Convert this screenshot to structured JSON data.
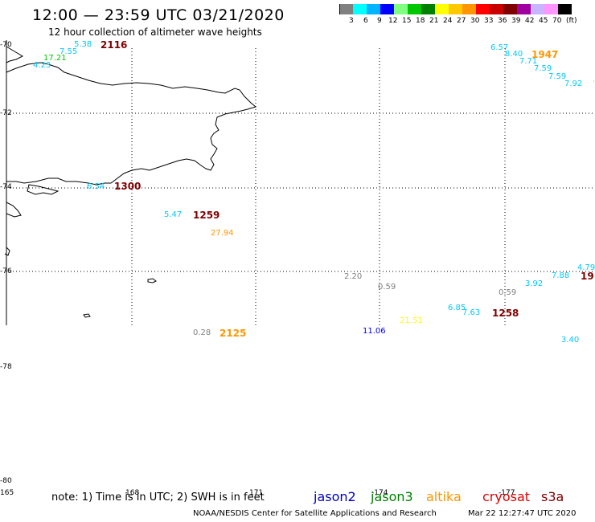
{
  "header": {
    "title": "12:00 — 23:59 UTC 03/21/2020",
    "subtitle": "12 hour collection of altimeter wave heights"
  },
  "legend": {
    "colors": [
      "#808080",
      "#00ffff",
      "#00b4ff",
      "#0000ff",
      "#80ff80",
      "#00c800",
      "#008000",
      "#ffff00",
      "#ffc800",
      "#ff9600",
      "#ff0000",
      "#c80000",
      "#800000",
      "#a000a0",
      "#c8b4ff",
      "#ff96ff",
      "#000000"
    ],
    "labels": [
      "3",
      "6",
      "9",
      "12",
      "15",
      "18",
      "21",
      "24",
      "27",
      "30",
      "33",
      "36",
      "39",
      "42",
      "45",
      "70",
      "(ft)"
    ]
  },
  "axes": {
    "lat_labels": [
      "-70",
      "-72",
      "-74",
      "-76",
      "-78",
      "-80"
    ],
    "lon_labels": [
      "165",
      "168",
      "171",
      "-174",
      "-177"
    ]
  },
  "observations": [
    {
      "text": "5.38",
      "color": "#00c8ff"
    },
    {
      "text": "7.55",
      "color": "#00c8ff"
    },
    {
      "text": "17.21",
      "color": "#00c800"
    },
    {
      "text": "4.23",
      "color": "#00c8ff"
    },
    {
      "text": "6.57",
      "color": "#00c8ff"
    },
    {
      "text": "8.40",
      "color": "#00c8ff"
    },
    {
      "text": "7.71",
      "color": "#00c8ff"
    },
    {
      "text": "7.59",
      "color": "#00c8ff"
    },
    {
      "text": "7.59",
      "color": "#00c8ff"
    },
    {
      "text": "7.92",
      "color": "#00c8ff"
    },
    {
      "text": "6.54",
      "color": "#00c8ff"
    },
    {
      "text": "5.47",
      "color": "#00c8ff"
    },
    {
      "text": "27.94",
      "color": "#ff9600"
    },
    {
      "text": "4.79",
      "color": "#00c8ff"
    },
    {
      "text": "7.88",
      "color": "#00c8ff"
    },
    {
      "text": "3.92",
      "color": "#00c8ff"
    },
    {
      "text": "2.20",
      "color": "#808080"
    },
    {
      "text": "0.59",
      "color": "#808080"
    },
    {
      "text": "0.59",
      "color": "#808080"
    },
    {
      "text": "6.85",
      "color": "#00c8ff"
    },
    {
      "text": "7.63",
      "color": "#00c8ff"
    },
    {
      "text": "21.51",
      "color": "#ffff00"
    },
    {
      "text": "11.06",
      "color": "#0000ff"
    },
    {
      "text": "0.28",
      "color": "#808080"
    },
    {
      "text": "3.40",
      "color": "#00c8ff"
    }
  ],
  "time_tags": [
    {
      "text": "2116",
      "color": "#800000"
    },
    {
      "text": "1947",
      "color": "#ff9600"
    },
    {
      "text": "1300",
      "color": "#800000"
    },
    {
      "text": "1259",
      "color": "#800000"
    },
    {
      "text": "19",
      "color": "#800000"
    },
    {
      "text": "1258",
      "color": "#800000"
    },
    {
      "text": "2125",
      "color": "#ff9600"
    }
  ],
  "footer": {
    "note": "note: 1) Time is in UTC; 2) SWH is in feet",
    "satellites": [
      {
        "name": "jason2",
        "color": "#0000c8"
      },
      {
        "name": "jason3",
        "color": "#008000"
      },
      {
        "name": "altika",
        "color": "#ff9600"
      },
      {
        "name": "cryosat",
        "color": "#e00000"
      },
      {
        "name": "s3a",
        "color": "#800000"
      }
    ],
    "credit": "NOAA/NESDIS Center for Satellite Applications and Research",
    "timestamp": "Mar 22 12:27:47 UTC 2020"
  }
}
